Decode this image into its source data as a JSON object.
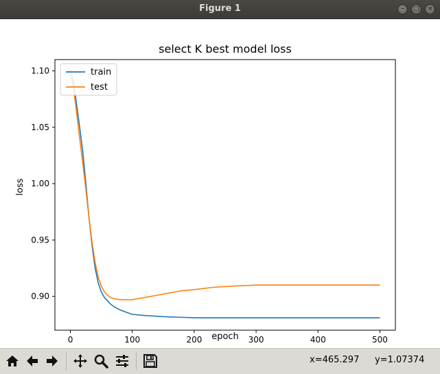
{
  "window": {
    "title": "Figure 1"
  },
  "toolbar": {
    "tools": [
      "home-icon",
      "back-arrow-icon",
      "forward-arrow-icon",
      "pan-icon",
      "zoom-icon",
      "subplots-config-icon",
      "save-icon"
    ],
    "x_readout": "x=465.297",
    "y_readout": "y=1.07374"
  },
  "colors": {
    "train": "#1f77b4",
    "test": "#ff7f0e",
    "toolbar_bg": "#dcdad5",
    "titlebar_bg": "#3c3b37"
  },
  "chart_data": {
    "type": "line",
    "title": "select K best model loss",
    "xlabel": "epoch",
    "ylabel": "loss",
    "xlim": [
      -25,
      525
    ],
    "ylim": [
      0.87,
      1.11
    ],
    "xticks": [
      0,
      100,
      200,
      300,
      400,
      500
    ],
    "xtick_labels": [
      "0",
      "100",
      "200",
      "300",
      "400",
      "500"
    ],
    "yticks": [
      0.9,
      0.95,
      1.0,
      1.05,
      1.1
    ],
    "ytick_labels": [
      "0.90",
      "0.95",
      "1.00",
      "1.05",
      "1.10"
    ],
    "grid": false,
    "legend": {
      "placement": "upper-left",
      "entries": [
        "train",
        "test"
      ]
    },
    "series": [
      {
        "name": "train",
        "x": [
          0,
          5,
          10,
          15,
          20,
          25,
          30,
          35,
          40,
          45,
          50,
          55,
          60,
          65,
          70,
          80,
          90,
          100,
          120,
          150,
          200,
          250,
          300,
          400,
          500
        ],
        "values": [
          1.1,
          1.09,
          1.07,
          1.05,
          1.028,
          1.0,
          0.97,
          0.945,
          0.925,
          0.912,
          0.904,
          0.899,
          0.896,
          0.893,
          0.891,
          0.888,
          0.886,
          0.884,
          0.883,
          0.882,
          0.881,
          0.881,
          0.881,
          0.881,
          0.881
        ]
      },
      {
        "name": "test",
        "x": [
          0,
          5,
          10,
          15,
          20,
          25,
          30,
          35,
          40,
          45,
          50,
          55,
          60,
          65,
          70,
          80,
          90,
          100,
          110,
          120,
          140,
          160,
          180,
          200,
          230,
          260,
          300,
          350,
          400,
          500
        ],
        "values": [
          1.1,
          1.085,
          1.063,
          1.04,
          1.018,
          0.995,
          0.97,
          0.948,
          0.93,
          0.917,
          0.909,
          0.904,
          0.901,
          0.899,
          0.898,
          0.897,
          0.897,
          0.897,
          0.898,
          0.899,
          0.901,
          0.903,
          0.905,
          0.906,
          0.908,
          0.909,
          0.91,
          0.91,
          0.91,
          0.91
        ]
      }
    ]
  }
}
